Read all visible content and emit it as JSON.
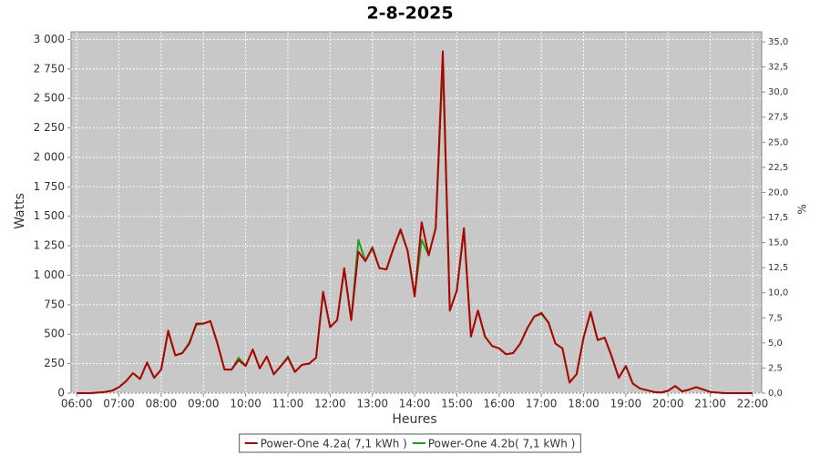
{
  "chart_data": {
    "type": "line",
    "title": "2-8-2025",
    "x_label": "Heures",
    "y_label": "Watts",
    "y2_label": "%",
    "x": [
      "06:00",
      "06:10",
      "06:20",
      "06:30",
      "06:40",
      "06:50",
      "07:00",
      "07:10",
      "07:20",
      "07:30",
      "07:40",
      "07:50",
      "08:00",
      "08:10",
      "08:20",
      "08:30",
      "08:40",
      "08:50",
      "09:00",
      "09:10",
      "09:20",
      "09:30",
      "09:40",
      "09:50",
      "10:00",
      "10:10",
      "10:20",
      "10:30",
      "10:40",
      "10:50",
      "11:00",
      "11:10",
      "11:20",
      "11:30",
      "11:40",
      "11:50",
      "12:00",
      "12:10",
      "12:20",
      "12:30",
      "12:40",
      "12:50",
      "13:00",
      "13:10",
      "13:20",
      "13:30",
      "13:40",
      "13:50",
      "14:00",
      "14:10",
      "14:20",
      "14:30",
      "14:40",
      "14:50",
      "15:00",
      "15:10",
      "15:20",
      "15:30",
      "15:40",
      "15:50",
      "16:00",
      "16:10",
      "16:20",
      "16:30",
      "16:40",
      "16:50",
      "17:00",
      "17:10",
      "17:20",
      "17:30",
      "17:40",
      "17:50",
      "18:00",
      "18:10",
      "18:20",
      "18:30",
      "18:40",
      "18:50",
      "19:00",
      "19:10",
      "19:20",
      "19:30",
      "19:40",
      "19:50",
      "20:00",
      "20:10",
      "20:20",
      "20:30",
      "20:40",
      "20:50",
      "21:00",
      "21:10",
      "21:20",
      "21:30",
      "21:40",
      "21:50",
      "22:00"
    ],
    "series": [
      {
        "name": "Power-One 4.2a( 7,1 kWh )",
        "color": "#b00000",
        "values": [
          0,
          0,
          0,
          5,
          10,
          20,
          50,
          100,
          170,
          120,
          260,
          130,
          200,
          530,
          320,
          340,
          420,
          590,
          590,
          610,
          420,
          200,
          200,
          280,
          230,
          370,
          210,
          310,
          160,
          230,
          300,
          180,
          240,
          250,
          300,
          860,
          560,
          620,
          1060,
          620,
          1200,
          1120,
          1230,
          1060,
          1050,
          1230,
          1390,
          1210,
          820,
          1450,
          1170,
          1400,
          2900,
          700,
          870,
          1400,
          480,
          700,
          480,
          400,
          380,
          330,
          340,
          420,
          550,
          650,
          680,
          600,
          420,
          380,
          90,
          160,
          470,
          690,
          450,
          470,
          310,
          130,
          230,
          80,
          40,
          25,
          10,
          5,
          20,
          60,
          15,
          30,
          50,
          30,
          10,
          5,
          0,
          0,
          0,
          0,
          0
        ]
      },
      {
        "name": "Power-One 4.2b( 7,1 kWh )",
        "color": "#1aa31a",
        "values": [
          0,
          0,
          0,
          5,
          10,
          20,
          50,
          100,
          170,
          120,
          260,
          130,
          200,
          520,
          320,
          340,
          430,
          580,
          590,
          610,
          420,
          200,
          200,
          300,
          230,
          370,
          210,
          310,
          160,
          230,
          310,
          180,
          240,
          250,
          300,
          850,
          560,
          620,
          1050,
          620,
          1300,
          1120,
          1240,
          1060,
          1050,
          1230,
          1380,
          1210,
          830,
          1300,
          1170,
          1400,
          2800,
          700,
          870,
          1380,
          480,
          700,
          480,
          400,
          380,
          330,
          340,
          420,
          550,
          650,
          670,
          600,
          420,
          380,
          90,
          160,
          470,
          680,
          450,
          470,
          310,
          130,
          230,
          80,
          40,
          25,
          10,
          5,
          20,
          60,
          15,
          30,
          50,
          30,
          10,
          5,
          0,
          0,
          0,
          0,
          0
        ]
      }
    ],
    "xlim": [
      "05:52",
      "22:13"
    ],
    "xticks": [
      "06:00",
      "07:00",
      "08:00",
      "09:00",
      "10:00",
      "11:00",
      "12:00",
      "13:00",
      "14:00",
      "15:00",
      "16:00",
      "17:00",
      "18:00",
      "19:00",
      "20:00",
      "21:00",
      "22:00"
    ],
    "ylim": [
      0,
      3065
    ],
    "yticks": [
      0,
      250,
      500,
      750,
      {
        "value": 1000,
        "label": "1 000"
      },
      {
        "value": 1250,
        "label": "1 250"
      },
      {
        "value": 1500,
        "label": "1 500"
      },
      {
        "value": 1750,
        "label": "1 750"
      },
      {
        "value": 2000,
        "label": "2 000"
      },
      {
        "value": 2250,
        "label": "2 250"
      },
      {
        "value": 2500,
        "label": "2 500"
      },
      {
        "value": 2750,
        "label": "2 750"
      },
      {
        "value": 3000,
        "label": "3 000"
      }
    ],
    "y2lim": [
      0,
      36
    ],
    "y2ticks": [
      {
        "value": 0,
        "label": "0,0"
      },
      {
        "value": 2.5,
        "label": "2,5"
      },
      {
        "value": 5,
        "label": "5,0"
      },
      {
        "value": 7.5,
        "label": "7,5"
      },
      {
        "value": 10,
        "label": "10,0"
      },
      {
        "value": 12.5,
        "label": "12,5"
      },
      {
        "value": 15,
        "label": "15,0"
      },
      {
        "value": 17.5,
        "label": "17,5"
      },
      {
        "value": 20,
        "label": "20,0"
      },
      {
        "value": 22.5,
        "label": "22,5"
      },
      {
        "value": 25,
        "label": "25,0"
      },
      {
        "value": 27.5,
        "label": "27,5"
      },
      {
        "value": 30,
        "label": "30,0"
      },
      {
        "value": 32.5,
        "label": "32,5"
      },
      {
        "value": 35,
        "label": "35,0"
      }
    ],
    "grid": true,
    "plot_background": "#c8c8c8"
  }
}
